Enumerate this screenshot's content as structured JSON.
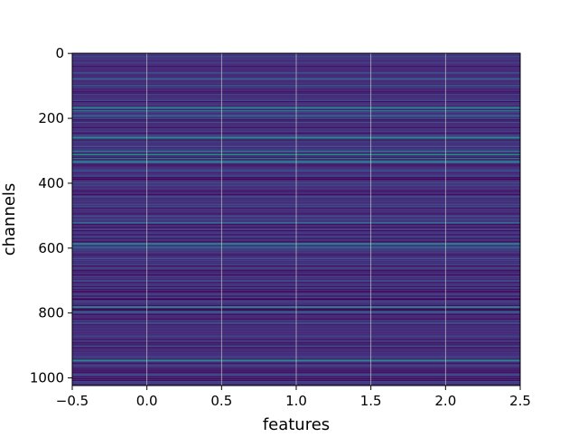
{
  "chart_data": {
    "type": "heatmap",
    "title": "",
    "xlabel": "features",
    "ylabel": "channels",
    "xlim": [
      -0.5,
      2.5
    ],
    "ylim": [
      1023.5,
      -0.5
    ],
    "y_inverted": true,
    "n_rows": 1024,
    "n_cols": 3,
    "x_ticks": [
      -0.5,
      0.0,
      0.5,
      1.0,
      1.5,
      2.0,
      2.5
    ],
    "x_tick_labels": [
      "−0.5",
      "0.0",
      "0.5",
      "1.0",
      "1.5",
      "2.0",
      "2.5"
    ],
    "y_ticks": [
      0,
      200,
      400,
      600,
      800,
      1000
    ],
    "y_tick_labels": [
      "0",
      "200",
      "400",
      "600",
      "800",
      "1000"
    ],
    "grid": true,
    "colormap": "viridis",
    "colors": {
      "background": "#440154",
      "dominant": "#46327e",
      "bright": "#21918c",
      "grid": "#d0d0d0"
    },
    "row_bands": [
      {
        "row": 58,
        "color": "#3b528b"
      },
      {
        "row": 77,
        "color": "#31688e"
      },
      {
        "row": 96,
        "color": "#3b528b"
      },
      {
        "row": 124,
        "color": "#414487"
      },
      {
        "row": 166,
        "color": "#21918c"
      },
      {
        "row": 175,
        "color": "#2c728e"
      },
      {
        "row": 190,
        "color": "#31688e"
      },
      {
        "row": 210,
        "color": "#3b528b"
      },
      {
        "row": 258,
        "color": "#21918c"
      },
      {
        "row": 285,
        "color": "#3b528b"
      },
      {
        "row": 300,
        "color": "#2c728e"
      },
      {
        "row": 310,
        "color": "#21918c"
      },
      {
        "row": 322,
        "color": "#2c728e"
      },
      {
        "row": 333,
        "color": "#21918c"
      },
      {
        "row": 360,
        "color": "#3b528b"
      },
      {
        "row": 405,
        "color": "#414487"
      },
      {
        "row": 440,
        "color": "#3b528b"
      },
      {
        "row": 470,
        "color": "#414487"
      },
      {
        "row": 500,
        "color": "#3b528b"
      },
      {
        "row": 520,
        "color": "#2c728e"
      },
      {
        "row": 540,
        "color": "#414487"
      },
      {
        "row": 585,
        "color": "#21918c"
      },
      {
        "row": 596,
        "color": "#31688e"
      },
      {
        "row": 630,
        "color": "#3b528b"
      },
      {
        "row": 660,
        "color": "#414487"
      },
      {
        "row": 700,
        "color": "#3b528b"
      },
      {
        "row": 740,
        "color": "#414487"
      },
      {
        "row": 780,
        "color": "#21918c"
      },
      {
        "row": 795,
        "color": "#2c728e"
      },
      {
        "row": 830,
        "color": "#3b528b"
      },
      {
        "row": 870,
        "color": "#414487"
      },
      {
        "row": 900,
        "color": "#3b528b"
      },
      {
        "row": 945,
        "color": "#21918c"
      },
      {
        "row": 960,
        "color": "#414487"
      },
      {
        "row": 990,
        "color": "#3b528b"
      },
      {
        "row": 1010,
        "color": "#414487"
      }
    ]
  }
}
